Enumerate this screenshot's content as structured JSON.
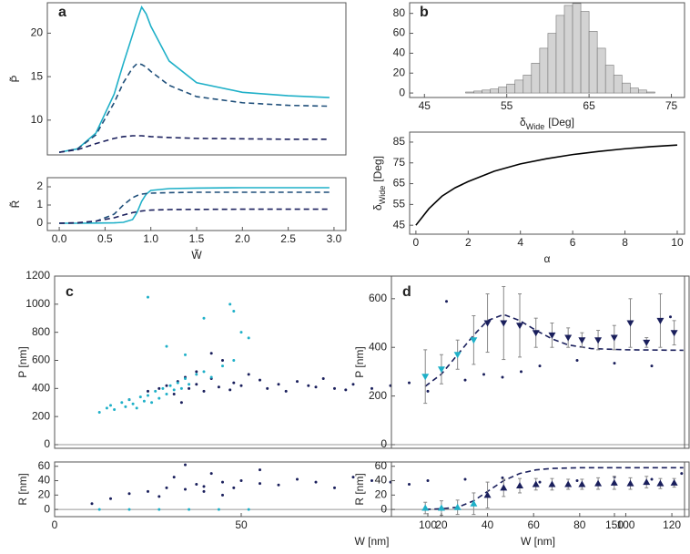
{
  "chart_data": [
    {
      "type": "line",
      "panel": "a",
      "ylabel": "P̃",
      "xlim": [
        -0.13,
        3.13
      ],
      "ylim": [
        6,
        23.5
      ],
      "yticks": [
        10,
        15,
        20
      ],
      "x": [
        0,
        0.2,
        0.4,
        0.6,
        0.7,
        0.8,
        0.85,
        0.9,
        0.95,
        1.0,
        1.2,
        1.5,
        2.0,
        2.5,
        2.95
      ],
      "series": [
        {
          "color": "#1fb0c8",
          "dash": false,
          "values": [
            6.3,
            6.7,
            8.5,
            13,
            16.5,
            19.8,
            21.5,
            23,
            22.2,
            20.8,
            16.8,
            14.3,
            13.2,
            12.8,
            12.6
          ]
        },
        {
          "color": "#1f4f7a",
          "dash": true,
          "values": [
            6.3,
            6.7,
            8.3,
            12,
            14.3,
            16,
            16.5,
            16.4,
            16.1,
            15.6,
            14,
            12.7,
            12,
            11.7,
            11.6
          ]
        },
        {
          "color": "#1a1f5c",
          "dash": true,
          "values": [
            6.3,
            6.6,
            7.3,
            7.9,
            8.1,
            8.2,
            8.2,
            8.2,
            8.15,
            8.1,
            8.0,
            7.9,
            7.85,
            7.8,
            7.8
          ]
        }
      ]
    },
    {
      "type": "line",
      "ylabel": "R̃",
      "xlabel": "W̃",
      "xlim": [
        -0.13,
        3.13
      ],
      "ylim": [
        -0.4,
        2.5
      ],
      "yticks": [
        0,
        1,
        2
      ],
      "xticks": [
        {
          "value": 0,
          "label": "0.0"
        },
        {
          "value": 0.5,
          "label": "0.5"
        },
        {
          "value": 1,
          "label": "1.0"
        },
        {
          "value": 1.5,
          "label": "1.5"
        },
        {
          "value": 2,
          "label": "2.0"
        },
        {
          "value": 2.5,
          "label": "2.5"
        },
        {
          "value": 3,
          "label": "3.0"
        }
      ],
      "x": [
        0,
        0.2,
        0.4,
        0.6,
        0.7,
        0.8,
        0.85,
        0.9,
        0.95,
        1.0,
        1.2,
        1.5,
        2.0,
        2.5,
        2.95
      ],
      "series": [
        {
          "color": "#1fb0c8",
          "dash": false,
          "values": [
            0,
            0,
            0.01,
            0.02,
            0.05,
            0.2,
            0.6,
            1.2,
            1.6,
            1.8,
            1.9,
            1.93,
            1.95,
            1.95,
            1.95
          ]
        },
        {
          "color": "#1f4f7a",
          "dash": true,
          "values": [
            0,
            0.01,
            0.1,
            0.5,
            1.0,
            1.4,
            1.52,
            1.6,
            1.63,
            1.65,
            1.68,
            1.7,
            1.7,
            1.7,
            1.7
          ]
        },
        {
          "color": "#1a1f5c",
          "dash": true,
          "values": [
            0,
            0.03,
            0.12,
            0.3,
            0.45,
            0.58,
            0.63,
            0.67,
            0.7,
            0.72,
            0.75,
            0.76,
            0.77,
            0.77,
            0.77
          ]
        }
      ]
    },
    {
      "type": "histogram",
      "panel": "b",
      "xlabel": [
        "δ",
        "Wide",
        "[Deg]"
      ],
      "xlim": [
        43.2,
        76.6
      ],
      "ylim": [
        -4.5,
        90.7
      ],
      "xticks": [
        45,
        55,
        65,
        75
      ],
      "yticks": [
        0,
        20,
        40,
        60,
        80
      ],
      "color": "#d3d3d3",
      "bins": [
        50,
        51,
        52,
        53,
        54,
        55,
        56,
        57,
        58,
        59,
        60,
        61,
        62,
        63,
        64,
        65,
        66,
        67,
        68,
        69,
        70,
        71,
        72,
        73
      ],
      "counts": [
        1,
        2,
        3,
        4,
        6,
        9,
        13,
        18,
        30,
        45,
        60,
        78,
        88,
        90,
        82,
        62,
        45,
        28,
        18,
        10,
        5,
        3,
        1
      ]
    },
    {
      "type": "line",
      "xlabel": "α",
      "ylabel": [
        "δ",
        "Wide",
        "[Deg]"
      ],
      "xlim": [
        -0.24,
        10.28
      ],
      "ylim": [
        40.7,
        89.8
      ],
      "xticks": [
        0,
        2,
        4,
        6,
        8,
        10
      ],
      "yticks": [
        45,
        55,
        65,
        75,
        85
      ],
      "x": [
        0,
        0.5,
        1,
        1.5,
        2,
        3,
        4,
        5,
        6,
        7,
        8,
        9,
        10
      ],
      "series": [
        {
          "color": "#000000",
          "dash": false,
          "values": [
            45,
            53,
            59,
            63,
            66,
            71,
            74.5,
            77,
            79,
            80.5,
            81.8,
            82.8,
            83.6
          ]
        }
      ]
    },
    {
      "type": "scatter",
      "panel": "c",
      "ylabel": "P [nm]",
      "xlim": [
        0,
        170
      ],
      "ylim": [
        -26,
        1200
      ],
      "yticks": [
        0,
        200,
        400,
        600,
        800,
        1000,
        1200
      ],
      "series": [
        {
          "color": "#1a1f5c",
          "x": [
            20,
            25,
            28,
            30,
            32,
            33,
            35,
            36,
            38,
            40,
            42,
            44,
            45,
            47,
            48,
            50,
            52,
            55,
            57,
            60,
            62,
            65,
            68,
            70,
            72,
            75,
            78,
            80,
            85,
            90,
            95,
            100,
            105,
            110,
            115,
            120,
            125,
            130,
            140,
            150,
            160,
            165,
            42,
            38,
            34
          ],
          "values": [
            320,
            380,
            400,
            420,
            360,
            450,
            480,
            400,
            430,
            380,
            470,
            410,
            600,
            390,
            440,
            420,
            500,
            460,
            400,
            430,
            380,
            450,
            420,
            410,
            470,
            400,
            390,
            430,
            400,
            420,
            440,
            380,
            1020,
            460,
            500,
            480,
            520,
            560,
            600,
            580,
            560,
            910,
            650,
            520,
            300
          ]
        },
        {
          "color": "#1fb0c8",
          "x": [
            12,
            14,
            15,
            16,
            18,
            19,
            20,
            21,
            22,
            23,
            24,
            25,
            26,
            27,
            28,
            29,
            30,
            31,
            32,
            33,
            34,
            35,
            36,
            38,
            40,
            42,
            45,
            48,
            50,
            52,
            25,
            30,
            47,
            48,
            35,
            40
          ],
          "values": [
            230,
            260,
            280,
            250,
            300,
            270,
            320,
            290,
            260,
            340,
            310,
            350,
            300,
            380,
            330,
            400,
            360,
            420,
            390,
            440,
            400,
            470,
            430,
            500,
            520,
            480,
            560,
            600,
            800,
            760,
            1050,
            700,
            1000,
            950,
            640,
            900
          ]
        }
      ]
    },
    {
      "type": "scatter",
      "ylabel": "R [nm]",
      "xlabel": "W [nm]",
      "xlim": [
        0,
        170
      ],
      "ylim": [
        -10,
        66
      ],
      "xticks": [
        0,
        50,
        100,
        150
      ],
      "yticks": [
        0,
        20,
        40,
        60
      ],
      "series": [
        {
          "color": "#1a1f5c",
          "x": [
            10,
            15,
            20,
            25,
            30,
            32,
            35,
            38,
            40,
            42,
            45,
            48,
            50,
            55,
            60,
            65,
            70,
            75,
            80,
            85,
            90,
            95,
            100,
            110,
            120,
            130,
            140,
            150,
            160,
            168,
            35,
            45,
            55,
            28,
            40
          ],
          "values": [
            8,
            15,
            22,
            25,
            30,
            45,
            28,
            35,
            32,
            50,
            38,
            30,
            40,
            36,
            34,
            42,
            38,
            30,
            45,
            40,
            38,
            35,
            40,
            42,
            44,
            38,
            40,
            45,
            42,
            50,
            62,
            20,
            55,
            18,
            25
          ]
        },
        {
          "color": "#1fb0c8",
          "x": [
            12,
            20,
            28,
            36,
            44,
            52
          ],
          "values": [
            0,
            0,
            0,
            0,
            0,
            0
          ]
        }
      ]
    },
    {
      "type": "errorbar",
      "panel": "d",
      "ylabel": "P [nm]",
      "xlim": [
        -1.7,
        125.5
      ],
      "ylim": [
        -15,
        693
      ],
      "yticks": [
        0,
        200,
        400,
        600
      ],
      "series": [
        {
          "color": "#1a1f5c",
          "dash": true,
          "x": [
            13,
            20,
            27,
            34,
            40,
            47,
            54,
            61,
            68,
            75,
            85,
            100,
            125
          ],
          "values": [
            240,
            290,
            370,
            450,
            510,
            535,
            510,
            470,
            435,
            410,
            395,
            390,
            388
          ]
        },
        {
          "color": "#1fb0c8",
          "marker": "down",
          "x": [
            13,
            20,
            27,
            34
          ],
          "values": [
            280,
            310,
            370,
            430
          ],
          "errors": [
            110,
            60,
            60,
            100
          ]
        },
        {
          "color": "#1a1f5c",
          "marker": "down",
          "x": [
            40,
            47,
            54,
            61,
            68,
            75,
            81,
            88,
            95,
            102,
            109,
            115,
            121
          ],
          "values": [
            500,
            500,
            490,
            460,
            450,
            440,
            430,
            430,
            440,
            500,
            420,
            510,
            460
          ],
          "errors": [
            120,
            150,
            130,
            60,
            50,
            40,
            30,
            40,
            50,
            100,
            20,
            110,
            50
          ]
        }
      ]
    },
    {
      "type": "errorbar",
      "ylabel": "R [nm]",
      "xlabel": "W [nm]",
      "xlim": [
        -1.7,
        125.5
      ],
      "ylim": [
        -10,
        66
      ],
      "xticks": [
        20,
        40,
        60,
        80,
        100,
        120
      ],
      "yticks": [
        0,
        20,
        40,
        60
      ],
      "series": [
        {
          "color": "#1a1f5c",
          "dash": true,
          "x": [
            13,
            20,
            27,
            34,
            40,
            47,
            54,
            61,
            68,
            80,
            100,
            125
          ],
          "values": [
            0,
            1,
            3,
            12,
            25,
            40,
            50,
            55,
            57,
            58,
            58,
            58
          ]
        },
        {
          "color": "#1fb0c8",
          "marker": "up",
          "x": [
            13,
            20,
            27,
            34
          ],
          "values": [
            2,
            2,
            3,
            8
          ],
          "errors": [
            8,
            10,
            10,
            15
          ]
        },
        {
          "color": "#1a1f5c",
          "marker": "up",
          "x": [
            40,
            47,
            54,
            61,
            68,
            75,
            81,
            88,
            95,
            102,
            109,
            115,
            121
          ],
          "values": [
            20,
            30,
            33,
            35,
            35,
            35,
            35,
            36,
            37,
            36,
            38,
            36,
            37
          ],
          "errors": [
            18,
            12,
            10,
            8,
            8,
            7,
            7,
            8,
            9,
            8,
            8,
            7,
            6
          ]
        }
      ]
    }
  ]
}
